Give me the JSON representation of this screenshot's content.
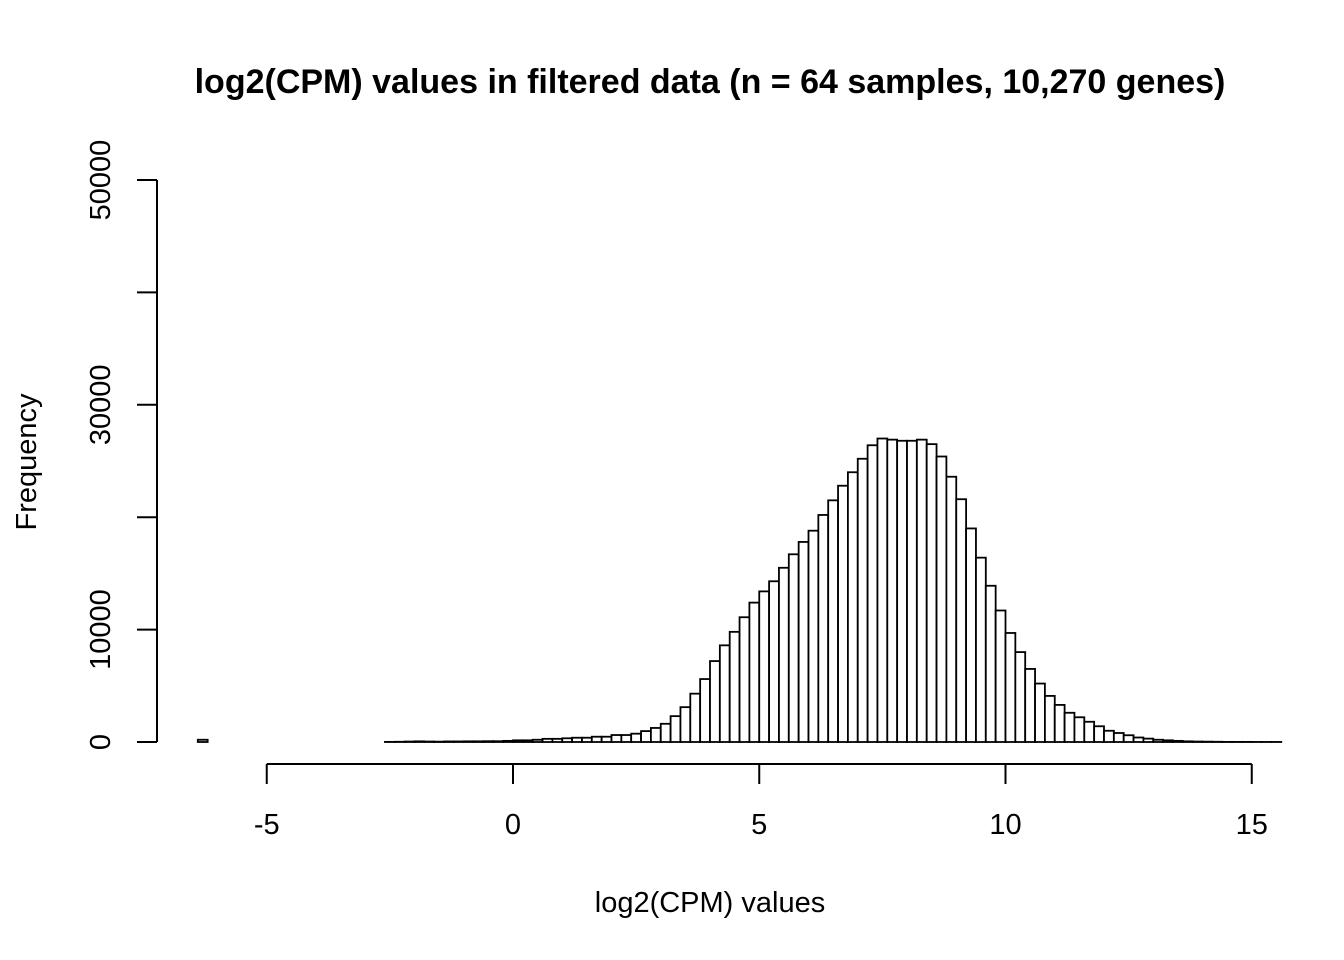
{
  "chart_data": {
    "type": "bar",
    "title": "log2(CPM) values in filtered data (n = 64 samples, 10,270 genes)",
    "xlabel": "log2(CPM) values",
    "ylabel": "Frequency",
    "xlim": [
      -7,
      15
    ],
    "ylim": [
      0,
      50000
    ],
    "x_ticks": [
      -5,
      0,
      5,
      10,
      15
    ],
    "y_ticks": [
      0,
      10000,
      20000,
      30000,
      40000,
      50000
    ],
    "x_tick_labels": [
      "-5",
      "0",
      "5",
      "10",
      "15"
    ],
    "y_tick_labels": [
      "0",
      "10000",
      "",
      "30000",
      "",
      "50000"
    ],
    "bin_width": 0.2,
    "bin_start": -6.4,
    "values": [
      200,
      0,
      0,
      0,
      0,
      0,
      0,
      0,
      0,
      0,
      0,
      0,
      0,
      0,
      0,
      0,
      0,
      0,
      0,
      10,
      20,
      40,
      60,
      40,
      30,
      50,
      50,
      60,
      60,
      70,
      70,
      100,
      150,
      150,
      200,
      280,
      280,
      330,
      380,
      380,
      470,
      470,
      620,
      620,
      740,
      970,
      1250,
      1620,
      2300,
      3100,
      4300,
      5600,
      7200,
      8600,
      9800,
      11100,
      12400,
      13400,
      14300,
      15500,
      16700,
      17800,
      18800,
      20200,
      21500,
      22800,
      24000,
      25200,
      26400,
      27000,
      26900,
      26800,
      26800,
      26900,
      26500,
      25400,
      23600,
      21600,
      19000,
      16400,
      13900,
      11700,
      9700,
      8000,
      6500,
      5200,
      4100,
      3300,
      2600,
      2200,
      1800,
      1400,
      1000,
      800,
      600,
      400,
      300,
      200,
      150,
      100,
      60,
      40,
      30,
      20,
      10,
      10,
      10,
      5,
      5,
      5
    ]
  }
}
